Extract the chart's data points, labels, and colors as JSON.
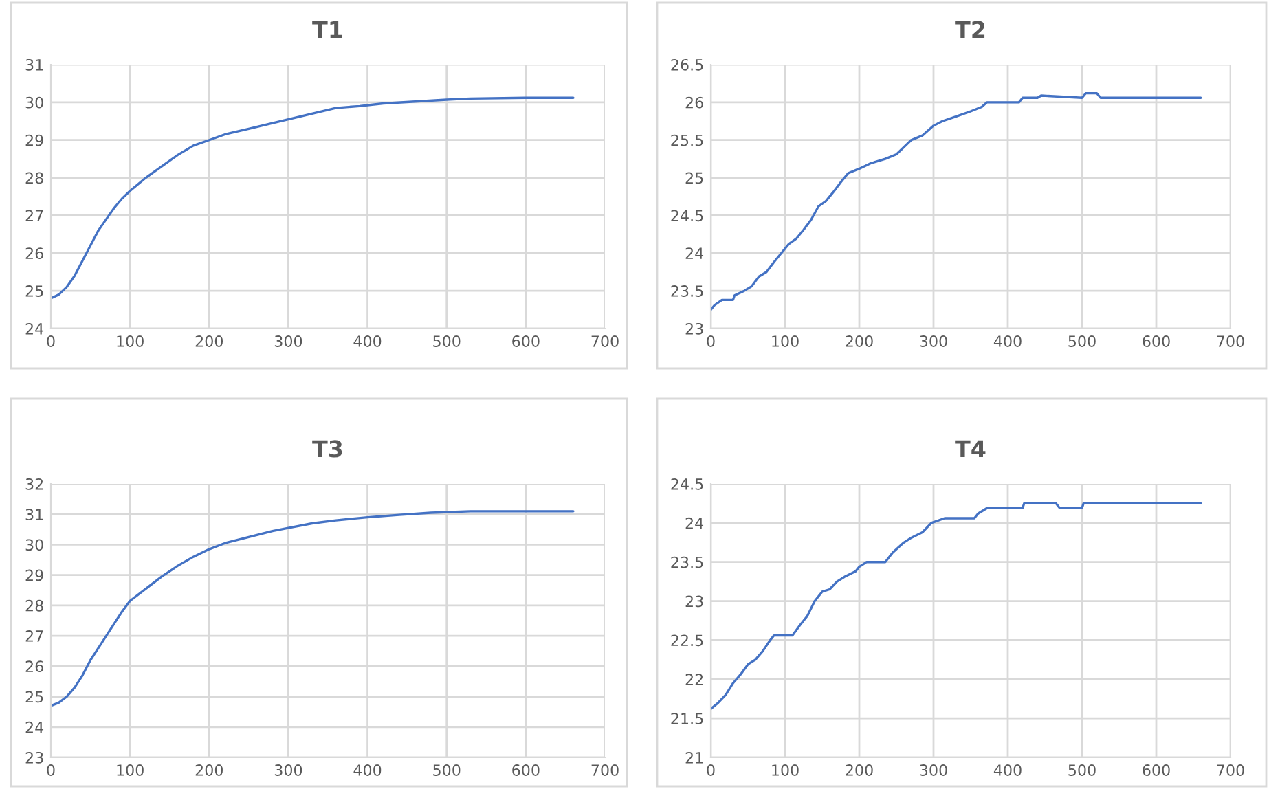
{
  "chart_data": [
    {
      "type": "line",
      "title": "T1",
      "xlim": [
        0,
        700
      ],
      "xticks": [
        0,
        100,
        200,
        300,
        400,
        500,
        600,
        700
      ],
      "ylim": [
        24,
        31
      ],
      "yticks": [
        24,
        25,
        26,
        27,
        28,
        29,
        30,
        31
      ],
      "grid": true,
      "series": [
        {
          "color": "#4472c4",
          "x": [
            0,
            10,
            20,
            30,
            40,
            50,
            60,
            70,
            80,
            90,
            100,
            120,
            140,
            160,
            180,
            200,
            220,
            250,
            280,
            300,
            330,
            360,
            390,
            420,
            460,
            500,
            530,
            600,
            660
          ],
          "values": [
            24.8,
            24.9,
            25.1,
            25.4,
            25.8,
            26.2,
            26.6,
            26.9,
            27.2,
            27.45,
            27.65,
            28.0,
            28.3,
            28.6,
            28.85,
            29.0,
            29.15,
            29.3,
            29.45,
            29.55,
            29.7,
            29.85,
            29.9,
            29.97,
            30.02,
            30.07,
            30.1,
            30.12,
            30.12
          ]
        }
      ]
    },
    {
      "type": "line",
      "title": "T2",
      "xlim": [
        0,
        700
      ],
      "xticks": [
        0,
        100,
        200,
        300,
        400,
        500,
        600,
        700
      ],
      "ylim": [
        23,
        26.5
      ],
      "yticks": [
        23,
        23.5,
        24,
        24.5,
        25,
        25.5,
        26,
        26.5
      ],
      "grid": true,
      "series": [
        {
          "color": "#4472c4",
          "x": [
            0,
            5,
            15,
            30,
            32,
            45,
            55,
            65,
            75,
            85,
            95,
            105,
            115,
            125,
            135,
            145,
            155,
            165,
            175,
            185,
            200,
            215,
            235,
            250,
            270,
            285,
            300,
            312,
            330,
            350,
            365,
            372,
            415,
            420,
            440,
            445,
            500,
            505,
            520,
            525,
            660
          ],
          "values": [
            23.25,
            23.31,
            23.38,
            23.38,
            23.44,
            23.5,
            23.56,
            23.69,
            23.75,
            23.88,
            24.0,
            24.12,
            24.19,
            24.31,
            24.44,
            24.62,
            24.69,
            24.81,
            24.94,
            25.06,
            25.12,
            25.19,
            25.25,
            25.31,
            25.5,
            25.56,
            25.69,
            25.75,
            25.81,
            25.88,
            25.94,
            26.0,
            26.0,
            26.06,
            26.06,
            26.09,
            26.06,
            26.12,
            26.12,
            26.06,
            26.06
          ]
        }
      ]
    },
    {
      "type": "line",
      "title": "T3",
      "xlim": [
        0,
        700
      ],
      "xticks": [
        0,
        100,
        200,
        300,
        400,
        500,
        600,
        700
      ],
      "ylim": [
        23,
        32
      ],
      "yticks": [
        23,
        24,
        25,
        26,
        27,
        28,
        29,
        30,
        31,
        32
      ],
      "grid": true,
      "series": [
        {
          "color": "#4472c4",
          "x": [
            0,
            10,
            20,
            30,
            40,
            50,
            60,
            70,
            80,
            90,
            100,
            120,
            140,
            160,
            180,
            200,
            220,
            250,
            280,
            300,
            330,
            360,
            400,
            440,
            480,
            530,
            660
          ],
          "values": [
            24.7,
            24.8,
            25.0,
            25.3,
            25.7,
            26.2,
            26.6,
            27.0,
            27.4,
            27.8,
            28.15,
            28.55,
            28.95,
            29.3,
            29.6,
            29.85,
            30.05,
            30.25,
            30.45,
            30.55,
            30.7,
            30.8,
            30.9,
            30.98,
            31.05,
            31.1,
            31.1
          ]
        }
      ]
    },
    {
      "type": "line",
      "title": "T4",
      "xlim": [
        0,
        700
      ],
      "xticks": [
        0,
        100,
        200,
        300,
        400,
        500,
        600,
        700
      ],
      "ylim": [
        21,
        24.5
      ],
      "yticks": [
        21,
        21.5,
        22,
        22.5,
        23,
        23.5,
        24,
        24.5
      ],
      "grid": true,
      "series": [
        {
          "color": "#4472c4",
          "x": [
            0,
            10,
            20,
            30,
            40,
            50,
            60,
            70,
            80,
            85,
            110,
            120,
            130,
            140,
            150,
            160,
            170,
            180,
            195,
            200,
            210,
            235,
            245,
            260,
            270,
            285,
            297,
            315,
            355,
            360,
            372,
            420,
            422,
            465,
            470,
            500,
            502,
            660
          ],
          "values": [
            21.62,
            21.7,
            21.8,
            21.95,
            22.06,
            22.19,
            22.25,
            22.36,
            22.5,
            22.56,
            22.56,
            22.69,
            22.81,
            23.0,
            23.12,
            23.15,
            23.25,
            23.31,
            23.38,
            23.44,
            23.5,
            23.5,
            23.62,
            23.75,
            23.81,
            23.88,
            24.0,
            24.06,
            24.06,
            24.12,
            24.19,
            24.19,
            24.25,
            24.25,
            24.19,
            24.19,
            24.25,
            24.25
          ]
        }
      ]
    }
  ]
}
